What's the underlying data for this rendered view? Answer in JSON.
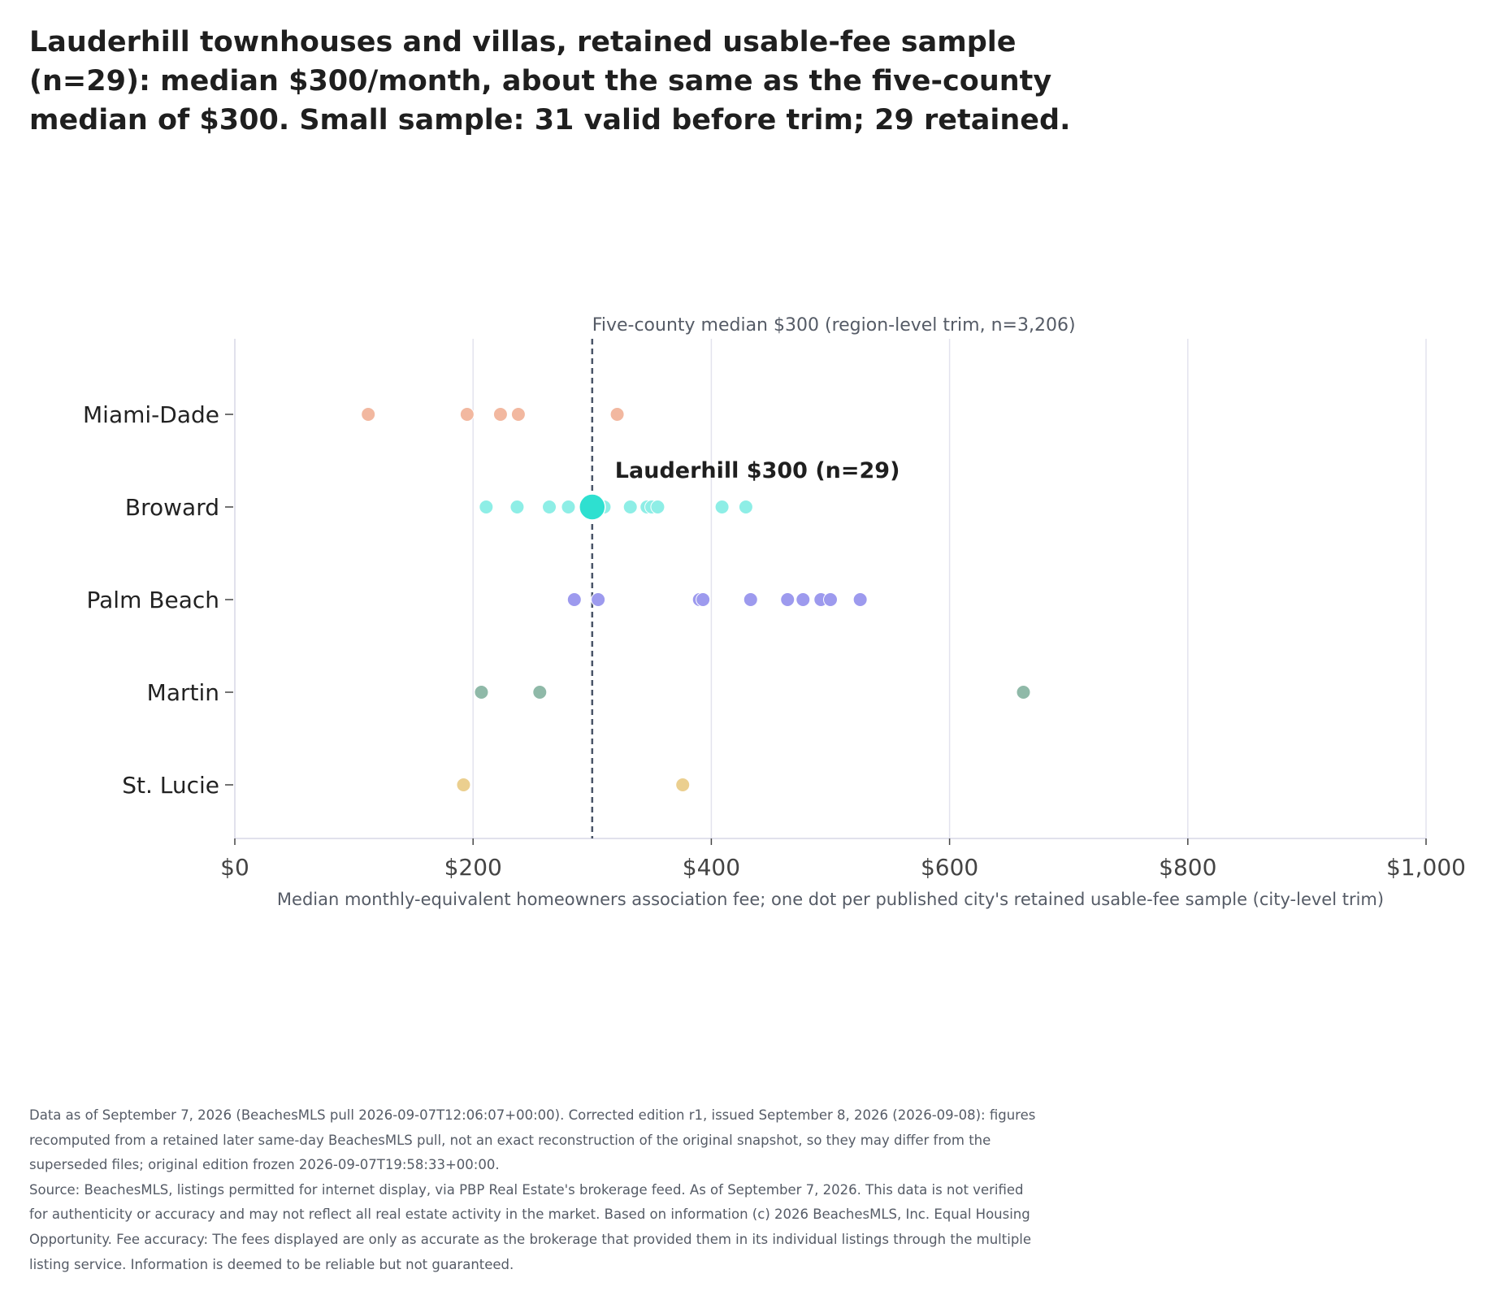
{
  "title_lines": [
    "Lauderhill townhouses and villas, retained usable-fee sample",
    "(n=29): median $300/month, about the same as the five-county",
    "median of $300. Small sample: 31 valid before trim; 29 retained."
  ],
  "footer": {
    "edition_lines": [
      "Data as of September 7, 2026 (BeachesMLS pull 2026-09-07T12:06:07+00:00). Corrected edition r1, issued September 8, 2026 (2026-09-08): figures",
      "recomputed from a retained later same-day BeachesMLS pull, not an exact reconstruction of the original snapshot, so they may differ from the",
      "superseded files; original edition frozen 2026-09-07T19:58:33+00:00."
    ],
    "source_lines": [
      "Source: BeachesMLS, listings permitted for internet display, via PBP Real Estate's brokerage feed. As of September 7, 2026. This data is not verified",
      "for authenticity or accuracy and may not reflect all real estate activity in the market. Based on information (c) 2026 BeachesMLS, Inc. Equal Housing",
      "Opportunity. Fee accuracy: The fees displayed are only as accurate as the brokerage that provided them in its individual listings through the multiple",
      "listing service. Information is deemed to be reliable but not guaranteed."
    ]
  },
  "chart_data": {
    "type": "scatter",
    "xlabel": "Median monthly-equivalent homeowners association fee; one dot per published city's retained usable-fee sample (city-level trim)",
    "xlim": [
      0,
      1000
    ],
    "x_ticks": [
      0,
      200,
      400,
      600,
      800,
      1000
    ],
    "x_tick_labels": [
      "$0",
      "$200",
      "$400",
      "$600",
      "$800",
      "$1,000"
    ],
    "categories": [
      "Miami-Dade",
      "Broward",
      "Palm Beach",
      "Martin",
      "St. Lucie"
    ],
    "grid": true,
    "reference_line": {
      "x": 300,
      "label": "Five-county median $300 (region-level trim, n=3,206)",
      "color": "#4a5568"
    },
    "highlight": {
      "category": "Broward",
      "x": 300,
      "label": "Lauderhill $300 (n=29)",
      "color": "#2ee0d0"
    },
    "series": [
      {
        "category": "Miami-Dade",
        "color": "#f2b8a0",
        "values": [
          112,
          195,
          223,
          238,
          321
        ]
      },
      {
        "category": "Broward",
        "color": "#8eeee6",
        "values": [
          211,
          237,
          264,
          280,
          310,
          332,
          346,
          350,
          355,
          409,
          429
        ]
      },
      {
        "category": "Palm Beach",
        "color": "#9d9aee",
        "values": [
          285,
          305,
          390,
          393,
          433,
          464,
          477,
          492,
          500,
          525
        ]
      },
      {
        "category": "Martin",
        "color": "#8fb9a8",
        "values": [
          207,
          256,
          662
        ]
      },
      {
        "category": "St. Lucie",
        "color": "#ebcf8f",
        "values": [
          192,
          376
        ]
      }
    ]
  }
}
